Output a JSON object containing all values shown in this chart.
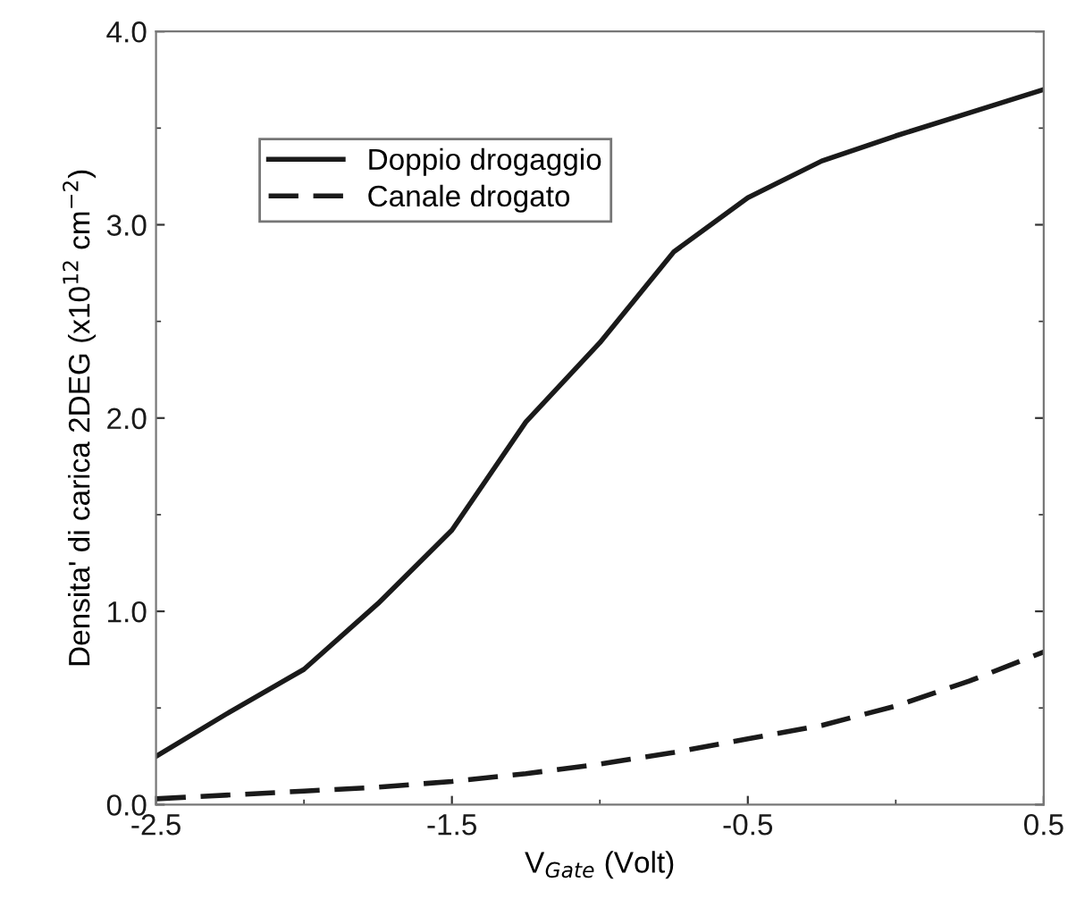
{
  "chart_data": {
    "type": "line",
    "xlabel": "V$_{Gate}$ (Volt)",
    "ylabel": "Densita' di carica 2DEG (x10$^{12}$ cm$^{−2}$)",
    "x": [
      -2.5,
      -2.25,
      -2.0,
      -1.75,
      -1.5,
      -1.25,
      -1.0,
      -0.75,
      -0.5,
      -0.25,
      0.0,
      0.25,
      0.5
    ],
    "series": [
      {
        "name": "Doppio drogaggio",
        "color": "#1a1a1a",
        "line_style": "solid",
        "values": [
          0.25,
          0.48,
          0.7,
          1.04,
          1.42,
          1.98,
          2.39,
          2.86,
          3.14,
          3.33,
          3.46,
          3.58,
          3.7
        ]
      },
      {
        "name": "Canale drogato",
        "color": "#1a1a1a",
        "line_style": "dashed",
        "values": [
          0.03,
          0.05,
          0.07,
          0.09,
          0.12,
          0.16,
          0.21,
          0.27,
          0.34,
          0.41,
          0.51,
          0.64,
          0.79
        ]
      }
    ],
    "xlim": [
      -2.5,
      0.5
    ],
    "xticks": [
      -2.5,
      -1.5,
      -0.5,
      0.5
    ],
    "ylim": [
      0.0,
      4.0
    ],
    "yticks": [
      {
        "value": 0,
        "label": "0.0"
      },
      {
        "value": 1,
        "label": "1.0"
      },
      {
        "value": 2,
        "label": "2.0"
      },
      {
        "value": 3,
        "label": "3.0"
      },
      {
        "value": 4,
        "label": "4.0"
      }
    ],
    "grid": false,
    "legend": "top left",
    "marker": "none"
  }
}
